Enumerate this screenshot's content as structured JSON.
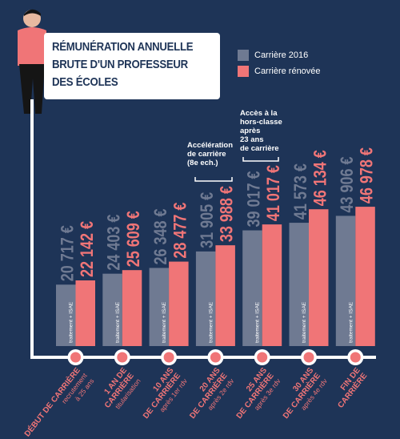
{
  "title": {
    "lines": [
      "RÉMUNÉRATION ANNUELLE",
      "BRUTE D'UN PROFESSEUR",
      "DES ÉCOLES"
    ]
  },
  "legend": {
    "items": [
      {
        "label": "Carrière 2016",
        "color": "#6f7a92"
      },
      {
        "label": "Carrière rénovée",
        "color": "#f07577"
      }
    ]
  },
  "colors": {
    "background": "#1e3457",
    "series_old": "#6f7a92",
    "series_new": "#f07577",
    "timeline": "#ffffff",
    "label_text": "#f07577"
  },
  "annotations": {
    "acceleration": [
      "Accélération",
      "de carrière",
      "(8e ech.)"
    ],
    "hors_classe": [
      "Accès à la",
      "hors-classe",
      "après",
      "23 ans",
      "de carrière"
    ]
  },
  "chart_data": {
    "type": "bar",
    "title": "RÉMUNÉRATION ANNUELLE BRUTE D'UN PROFESSEUR DES ÉCOLES",
    "xlabel": "",
    "ylabel": "",
    "categories": [
      {
        "main": [
          "DÉBUT DE CARRIÈRE"
        ],
        "sub": [
          "recrutement",
          "à 25 ans"
        ]
      },
      {
        "main": [
          "1 AN DE",
          "CARRIÈRE"
        ],
        "sub": [
          "titularisation"
        ]
      },
      {
        "main": [
          "10 ANS",
          "DE CARRIÈRE"
        ],
        "sub": [
          "après 1er rdv"
        ]
      },
      {
        "main": [
          "20 ANS",
          "DE CARRIÈRE"
        ],
        "sub": [
          "après 2e rdv"
        ]
      },
      {
        "main": [
          "25 ANS",
          "DE CARRIÈRE"
        ],
        "sub": [
          "après 3e rdv"
        ]
      },
      {
        "main": [
          "30 ANS",
          "DE CARRIÈRE"
        ],
        "sub": [
          "après 4e rdv"
        ]
      },
      {
        "main": [
          "FIN DE",
          "CARRIÈRE"
        ],
        "sub": []
      }
    ],
    "series": [
      {
        "name": "Carrière 2016",
        "values": [
          20717,
          24403,
          26348,
          31905,
          39017,
          41573,
          43906
        ],
        "labels": [
          "20 717 €",
          "24 403 €",
          "26 348 €",
          "31 905 €",
          "39 017 €",
          "41 573 €",
          "43 906 €"
        ]
      },
      {
        "name": "Carrière rénovée",
        "values": [
          22142,
          25609,
          28477,
          33988,
          41017,
          46134,
          46978
        ],
        "labels": [
          "22 142 €",
          "25 609 €",
          "28 477 €",
          "33 988 €",
          "41 017 €",
          "46 134 €",
          "46 978 €"
        ]
      }
    ],
    "bar_note": "traitement + ISAE",
    "legend_position": "top-right",
    "grid": false
  }
}
